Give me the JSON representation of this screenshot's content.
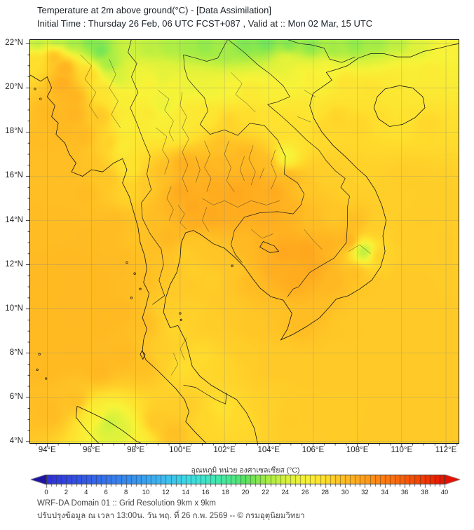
{
  "header": {
    "title_line1": "Temperature at 2m above ground(°C) - [Data Assimilation]",
    "title_line2": "Initial Time : Thursday 26 Feb, 06 UTC FCST+087 , Valid at :: Mon 02 Mar, 15 UTC"
  },
  "map": {
    "x_tick_labels": [
      "94°E",
      "96°E",
      "98°E",
      "100°E",
      "102°E",
      "104°E",
      "106°E",
      "108°E",
      "110°E",
      "112°E"
    ],
    "y_tick_labels": [
      "22°N",
      "20°N",
      "18°N",
      "16°N",
      "14°N",
      "12°N",
      "10°N",
      "8°N",
      "6°N",
      "4°N"
    ],
    "extent": {
      "lon_min": 93.2,
      "lon_max": 112.6,
      "lat_min": 3.9,
      "lat_max": 22.2
    },
    "grid_step_deg": 2
  },
  "colorbar": {
    "title": "อุณหภูมิ หน่วย องศาเซลเซียส (°C)",
    "tick_labels": [
      "0",
      "2",
      "4",
      "6",
      "8",
      "10",
      "12",
      "14",
      "16",
      "18",
      "20",
      "22",
      "24",
      "26",
      "28",
      "30",
      "32",
      "34",
      "36",
      "38",
      "40"
    ],
    "range_min": 0,
    "range_max": 40,
    "segment_step": 0.5,
    "under_color": "#1e14a0",
    "over_color": "#e61000",
    "stops": [
      [
        -2,
        "#1e14a0"
      ],
      [
        0,
        "#3030d6"
      ],
      [
        4,
        "#345ce9"
      ],
      [
        8,
        "#378cf0"
      ],
      [
        12,
        "#3cbef0"
      ],
      [
        14,
        "#3cd9e8"
      ],
      [
        16,
        "#3ee6c8"
      ],
      [
        18,
        "#46e99b"
      ],
      [
        20,
        "#5ae260"
      ],
      [
        22,
        "#a0ec46"
      ],
      [
        24,
        "#d6f23c"
      ],
      [
        26,
        "#f8f338"
      ],
      [
        28,
        "#ffde2d"
      ],
      [
        30,
        "#ffbc23"
      ],
      [
        32,
        "#ff9c1a"
      ],
      [
        34,
        "#ff7d10"
      ],
      [
        36,
        "#f85c09"
      ],
      [
        38,
        "#ef3a04"
      ],
      [
        40,
        "#e61000"
      ]
    ]
  },
  "footer": {
    "line1": "WRF-DA Domain 01 :: Grid Resolution 9km x 9km",
    "line2": "ปรับปรุงข้อมูล ณ เวลา 13:00น. วัน พฤ. ที่ 26 ก.พ. 2569 -- © กรมอุตุนิยมวิทยา"
  },
  "chart_data": {
    "type": "heatmap",
    "title": "Temperature at 2m above ground (°C)",
    "units": "°C",
    "lon_range": [
      93.2,
      112.6
    ],
    "lat_range": [
      3.9,
      22.2
    ],
    "background_temp_c": 29.6,
    "control_points": [
      [
        93.6,
        22.1,
        23
      ],
      [
        94.4,
        22.2,
        22.5
      ],
      [
        95.1,
        22.1,
        22
      ],
      [
        95.9,
        22.1,
        21
      ],
      [
        96.4,
        21.7,
        20.5
      ],
      [
        96.8,
        21.1,
        22
      ],
      [
        97.2,
        20.5,
        24
      ],
      [
        97.8,
        21.9,
        23.5
      ],
      [
        98.6,
        21.8,
        23
      ],
      [
        99.5,
        21.9,
        22.5
      ],
      [
        100.3,
        21.9,
        22
      ],
      [
        101.1,
        21.9,
        21.5
      ],
      [
        102.0,
        21.7,
        22
      ],
      [
        102.9,
        22.0,
        21
      ],
      [
        103.9,
        22.1,
        20.5
      ],
      [
        104.9,
        22.0,
        21
      ],
      [
        105.9,
        21.9,
        21.2
      ],
      [
        106.9,
        21.8,
        22
      ],
      [
        107.9,
        22.0,
        21.5
      ],
      [
        108.9,
        22.1,
        22
      ],
      [
        109.9,
        22.1,
        23
      ],
      [
        110.8,
        21.9,
        24.5
      ],
      [
        111.8,
        21.6,
        26
      ],
      [
        93.5,
        21.2,
        28
      ],
      [
        94.3,
        21.4,
        30
      ],
      [
        94.8,
        20.9,
        30.8
      ],
      [
        94.7,
        20.2,
        31
      ],
      [
        95.2,
        19.6,
        30.6
      ],
      [
        95.9,
        20.6,
        28.5
      ],
      [
        96.6,
        19.9,
        27.5
      ],
      [
        97.4,
        19.4,
        26.5
      ],
      [
        98.2,
        20.6,
        25.5
      ],
      [
        98.6,
        20.2,
        26.3
      ],
      [
        99.3,
        20.5,
        24.8
      ],
      [
        99.6,
        20.1,
        26
      ],
      [
        100.5,
        20.2,
        25.3
      ],
      [
        101.4,
        20.0,
        25.5
      ],
      [
        102.3,
        19.9,
        26
      ],
      [
        103.2,
        19.7,
        27
      ],
      [
        104.1,
        19.9,
        26.3
      ],
      [
        104.8,
        21.2,
        25
      ],
      [
        105.4,
        20.7,
        25.8
      ],
      [
        105.9,
        20.5,
        26.5
      ],
      [
        106.6,
        20.9,
        26
      ],
      [
        107.5,
        20.2,
        27.5
      ],
      [
        108.6,
        19.9,
        27.6
      ],
      [
        109.6,
        20.3,
        27
      ],
      [
        110.3,
        20.6,
        26.5
      ],
      [
        111.3,
        20.7,
        26.8
      ],
      [
        94.2,
        18.9,
        30.3
      ],
      [
        94.7,
        18.0,
        30.2
      ],
      [
        95.2,
        18.8,
        30.6
      ],
      [
        95.6,
        17.8,
        30.2
      ],
      [
        94.9,
        16.8,
        29.9
      ],
      [
        95.9,
        16.6,
        29.6
      ],
      [
        96.8,
        17.5,
        28.8
      ],
      [
        96.4,
        18.7,
        29.3
      ],
      [
        97.5,
        18.3,
        26.3
      ],
      [
        97.4,
        17.3,
        26.6
      ],
      [
        97.7,
        16.3,
        27.4
      ],
      [
        98.6,
        18.8,
        27
      ],
      [
        99.2,
        19.2,
        25.2
      ],
      [
        98.9,
        18.4,
        26.3
      ],
      [
        99.8,
        18.1,
        26.6
      ],
      [
        100.4,
        18.9,
        27
      ],
      [
        101.2,
        18.8,
        27.2
      ],
      [
        102.2,
        18.5,
        28.6
      ],
      [
        103.1,
        18.7,
        28
      ],
      [
        104.1,
        18.6,
        27.6
      ],
      [
        105.1,
        18.4,
        27.8
      ],
      [
        105.9,
        18.8,
        27.2
      ],
      [
        106.4,
        18.2,
        28.4
      ],
      [
        107.1,
        18.6,
        28.6
      ],
      [
        108.1,
        18.3,
        28.5
      ],
      [
        109.1,
        18.6,
        28
      ],
      [
        110.1,
        18.9,
        27.6
      ],
      [
        111.1,
        18.4,
        28.4
      ],
      [
        109.8,
        19.2,
        27.2
      ],
      [
        110.5,
        19.5,
        27.1
      ],
      [
        93.6,
        15.5,
        29.9
      ],
      [
        94.6,
        15.9,
        29.9
      ],
      [
        95.7,
        15.3,
        30
      ],
      [
        96.7,
        15.9,
        29.4
      ],
      [
        97.6,
        15.2,
        28.6
      ],
      [
        98.5,
        15.7,
        29.2
      ],
      [
        99.3,
        16.1,
        29.8
      ],
      [
        100.2,
        16.5,
        30.8
      ],
      [
        100.1,
        15.3,
        31.2
      ],
      [
        101.0,
        16.1,
        30.6
      ],
      [
        101.9,
        16.5,
        30.3
      ],
      [
        101.5,
        15.5,
        31
      ],
      [
        102.5,
        15.2,
        31.3
      ],
      [
        103.3,
        15.7,
        31
      ],
      [
        104.2,
        15.3,
        31.1
      ],
      [
        104.9,
        15.9,
        30.2
      ],
      [
        105.8,
        15.4,
        29.4
      ],
      [
        106.6,
        15.9,
        28.9
      ],
      [
        107.5,
        15.3,
        28.9
      ],
      [
        104.8,
        16.9,
        25.6
      ],
      [
        103.9,
        16.6,
        30
      ],
      [
        102.9,
        16.9,
        30.3
      ],
      [
        101.9,
        17.4,
        29.7
      ],
      [
        108.3,
        15.8,
        28.7
      ],
      [
        109.3,
        15.4,
        28.9
      ],
      [
        110.3,
        15.9,
        29
      ],
      [
        111.3,
        15.3,
        29
      ],
      [
        93.7,
        13.4,
        30
      ],
      [
        94.8,
        13.9,
        30
      ],
      [
        95.9,
        13.3,
        30.1
      ],
      [
        97.0,
        13.9,
        30
      ],
      [
        98.1,
        13.4,
        29.6
      ],
      [
        99.1,
        13.9,
        29.9
      ],
      [
        99.5,
        13.3,
        30.3
      ],
      [
        99.9,
        14.6,
        30.6
      ],
      [
        100.6,
        13.8,
        31
      ],
      [
        100.5,
        14.6,
        31.3
      ],
      [
        101.4,
        14.3,
        31.2
      ],
      [
        102.3,
        14.4,
        31
      ],
      [
        103.2,
        14.6,
        31
      ],
      [
        104.1,
        14.2,
        31
      ],
      [
        105.0,
        14.4,
        30.6
      ],
      [
        105.9,
        14.0,
        29.9
      ],
      [
        106.9,
        14.2,
        29.4
      ],
      [
        107.9,
        13.9,
        29.9
      ],
      [
        108.9,
        13.6,
        28.9
      ],
      [
        110.0,
        13.3,
        29.1
      ],
      [
        111.0,
        13.9,
        29.1
      ],
      [
        111.9,
        13.0,
        29.1
      ],
      [
        100.9,
        12.8,
        29.3
      ],
      [
        101.9,
        12.6,
        29.5
      ],
      [
        102.9,
        12.9,
        30.2
      ],
      [
        103.9,
        13.0,
        30.6
      ],
      [
        104.7,
        12.6,
        31.3
      ],
      [
        105.7,
        12.6,
        31.4
      ],
      [
        106.6,
        12.9,
        30.6
      ],
      [
        107.6,
        13.1,
        30.7
      ],
      [
        108.3,
        12.6,
        22.5
      ],
      [
        109.0,
        12.4,
        28.8
      ],
      [
        100.6,
        13.2,
        29.4
      ],
      [
        100.3,
        12.5,
        29
      ],
      [
        93.8,
        11.4,
        30.1
      ],
      [
        95.0,
        11.9,
        30.2
      ],
      [
        96.1,
        11.3,
        30.2
      ],
      [
        97.2,
        11.9,
        30.1
      ],
      [
        98.3,
        11.4,
        29.9
      ],
      [
        99.2,
        11.8,
        29.6
      ],
      [
        99.9,
        11.3,
        29.2
      ],
      [
        100.6,
        11.8,
        28.9
      ],
      [
        101.5,
        11.3,
        29
      ],
      [
        102.4,
        11.8,
        29.3
      ],
      [
        103.3,
        11.3,
        30
      ],
      [
        104.2,
        11.8,
        30.9
      ],
      [
        105.1,
        11.3,
        31
      ],
      [
        106.0,
        11.8,
        31.2
      ],
      [
        106.9,
        11.3,
        30.3
      ],
      [
        107.9,
        11.6,
        29.9
      ],
      [
        108.8,
        11.1,
        29.3
      ],
      [
        109.9,
        11.6,
        29.2
      ],
      [
        110.9,
        11.1,
        29.2
      ],
      [
        111.8,
        11.8,
        29.1
      ],
      [
        93.9,
        9.4,
        30.1
      ],
      [
        95.1,
        9.9,
        30.2
      ],
      [
        96.2,
        9.3,
        30.2
      ],
      [
        97.3,
        9.9,
        30.2
      ],
      [
        98.4,
        9.4,
        29.9
      ],
      [
        99.3,
        9.9,
        28.9
      ],
      [
        99.8,
        9.1,
        28.5
      ],
      [
        100.5,
        9.7,
        28.8
      ],
      [
        101.4,
        9.3,
        29
      ],
      [
        102.4,
        9.8,
        29.2
      ],
      [
        103.4,
        9.3,
        29.4
      ],
      [
        104.4,
        9.8,
        29.6
      ],
      [
        105.4,
        9.3,
        30
      ],
      [
        106.3,
        9.9,
        29.9
      ],
      [
        107.3,
        9.4,
        29.3
      ],
      [
        108.3,
        9.9,
        29.2
      ],
      [
        109.3,
        9.4,
        29.2
      ],
      [
        110.3,
        9.9,
        29.2
      ],
      [
        111.3,
        9.4,
        29.2
      ],
      [
        94.0,
        7.4,
        30.2
      ],
      [
        95.2,
        7.9,
        30.2
      ],
      [
        96.3,
        7.3,
        30.3
      ],
      [
        97.4,
        7.9,
        30.2
      ],
      [
        98.4,
        7.4,
        29.8
      ],
      [
        99.2,
        7.9,
        28.9
      ],
      [
        100.1,
        7.4,
        28
      ],
      [
        101.0,
        7.9,
        28.2
      ],
      [
        101.9,
        7.4,
        28.5
      ],
      [
        102.9,
        7.9,
        29
      ],
      [
        103.9,
        7.4,
        29.2
      ],
      [
        104.9,
        7.9,
        29.2
      ],
      [
        105.9,
        7.4,
        29.2
      ],
      [
        106.9,
        7.9,
        29.2
      ],
      [
        107.9,
        7.4,
        29.2
      ],
      [
        108.9,
        7.9,
        29.2
      ],
      [
        109.9,
        7.4,
        29.2
      ],
      [
        110.9,
        7.9,
        29.2
      ],
      [
        111.8,
        7.4,
        29.2
      ],
      [
        94.1,
        5.4,
        30
      ],
      [
        95.2,
        5.9,
        29.8
      ],
      [
        96.2,
        5.2,
        26.5
      ],
      [
        96.8,
        4.8,
        23.5
      ],
      [
        97.4,
        4.4,
        24.5
      ],
      [
        98.1,
        4.1,
        26.5
      ],
      [
        98.9,
        4.9,
        29.3
      ],
      [
        99.7,
        4.4,
        29.8
      ],
      [
        100.3,
        5.5,
        29
      ],
      [
        101.1,
        4.9,
        28.4
      ],
      [
        101.9,
        5.5,
        27.8
      ],
      [
        102.9,
        4.9,
        28.3
      ],
      [
        103.9,
        5.4,
        28.8
      ],
      [
        104.9,
        4.9,
        29.1
      ],
      [
        105.9,
        5.4,
        29.1
      ],
      [
        106.9,
        4.9,
        29.1
      ],
      [
        107.9,
        5.4,
        29.1
      ],
      [
        108.9,
        4.9,
        29.2
      ],
      [
        109.9,
        5.4,
        29.2
      ],
      [
        110.9,
        4.9,
        29.2
      ],
      [
        111.8,
        5.6,
        29.2
      ]
    ]
  }
}
